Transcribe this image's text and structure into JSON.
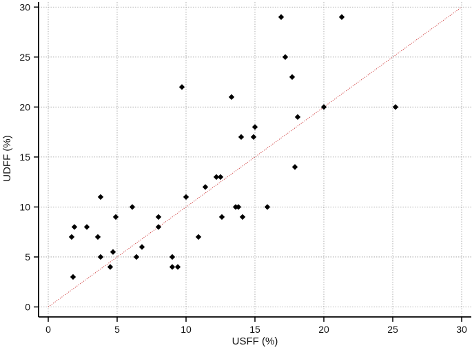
{
  "chart_data": {
    "type": "scatter",
    "xlabel": "USFF (%)",
    "ylabel": "UDFF (%)",
    "xlim": [
      -0.7,
      30.7
    ],
    "ylim": [
      -1,
      30.5
    ],
    "xticks": [
      0,
      5,
      10,
      15,
      20,
      25,
      30
    ],
    "yticks": [
      0,
      5,
      10,
      15,
      20,
      25,
      30
    ],
    "grid": true,
    "reference_line": {
      "kind": "identity",
      "from": [
        0,
        0
      ],
      "to": [
        30,
        30
      ],
      "color": "#d04040",
      "style": "dotted"
    },
    "marker": {
      "shape": "diamond",
      "color": "#000000"
    },
    "points": [
      {
        "x": 1.7,
        "y": 7
      },
      {
        "x": 1.8,
        "y": 3
      },
      {
        "x": 1.9,
        "y": 8
      },
      {
        "x": 2.8,
        "y": 8
      },
      {
        "x": 3.6,
        "y": 7
      },
      {
        "x": 3.8,
        "y": 11
      },
      {
        "x": 3.8,
        "y": 5
      },
      {
        "x": 4.5,
        "y": 4
      },
      {
        "x": 4.7,
        "y": 5.5
      },
      {
        "x": 4.9,
        "y": 9
      },
      {
        "x": 6.1,
        "y": 10
      },
      {
        "x": 6.4,
        "y": 5
      },
      {
        "x": 6.8,
        "y": 6
      },
      {
        "x": 8.0,
        "y": 9
      },
      {
        "x": 8.0,
        "y": 8
      },
      {
        "x": 9.0,
        "y": 5
      },
      {
        "x": 9.0,
        "y": 4
      },
      {
        "x": 9.4,
        "y": 4
      },
      {
        "x": 9.7,
        "y": 22
      },
      {
        "x": 10.0,
        "y": 11
      },
      {
        "x": 10.9,
        "y": 7
      },
      {
        "x": 11.4,
        "y": 12
      },
      {
        "x": 12.2,
        "y": 13
      },
      {
        "x": 12.5,
        "y": 13
      },
      {
        "x": 12.6,
        "y": 9
      },
      {
        "x": 13.3,
        "y": 21
      },
      {
        "x": 13.6,
        "y": 10
      },
      {
        "x": 13.8,
        "y": 10
      },
      {
        "x": 14.0,
        "y": 17
      },
      {
        "x": 14.1,
        "y": 9
      },
      {
        "x": 14.9,
        "y": 17
      },
      {
        "x": 15.0,
        "y": 18
      },
      {
        "x": 15.9,
        "y": 10
      },
      {
        "x": 16.9,
        "y": 29
      },
      {
        "x": 17.2,
        "y": 25
      },
      {
        "x": 17.7,
        "y": 23
      },
      {
        "x": 17.9,
        "y": 14
      },
      {
        "x": 18.1,
        "y": 19
      },
      {
        "x": 20.0,
        "y": 20
      },
      {
        "x": 21.3,
        "y": 29
      },
      {
        "x": 25.2,
        "y": 20
      }
    ]
  }
}
